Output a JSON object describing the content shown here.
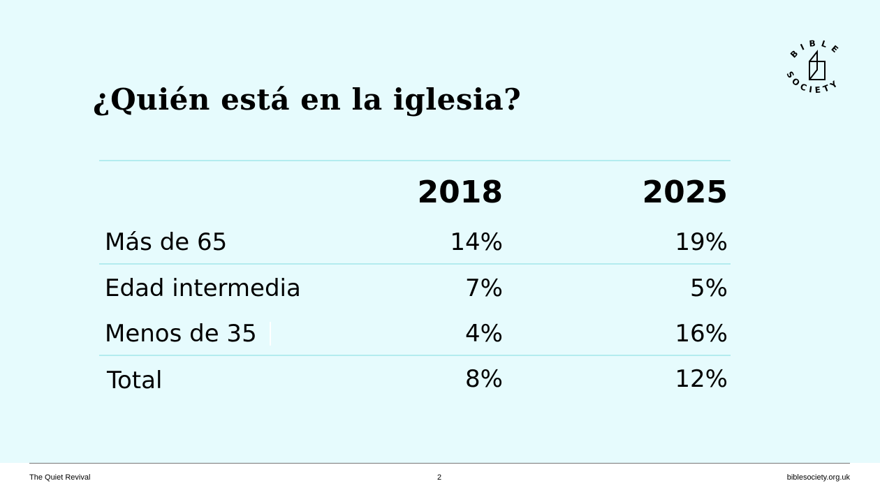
{
  "slide": {
    "title": "¿Quién está en la iglesia?",
    "logo_text": {
      "top": "BIBLE",
      "bottom": "SOCIETY"
    },
    "table": {
      "columns": [
        "2018",
        "2025"
      ],
      "rows": [
        {
          "label": "Más de 65",
          "values": [
            "14%",
            "19%"
          ]
        },
        {
          "label": "Edad intermedia",
          "values": [
            "7%",
            "5%"
          ]
        },
        {
          "label": "Menos de 35",
          "values": [
            "4%",
            "16%"
          ]
        },
        {
          "label": "Total",
          "values": [
            "8%",
            "12%"
          ]
        }
      ]
    }
  },
  "footer": {
    "left": "The Quiet Revival",
    "page": "2",
    "right": "biblesociety.org.uk"
  },
  "colors": {
    "background": "#e6fbfd",
    "rule": "#b3ecef"
  }
}
